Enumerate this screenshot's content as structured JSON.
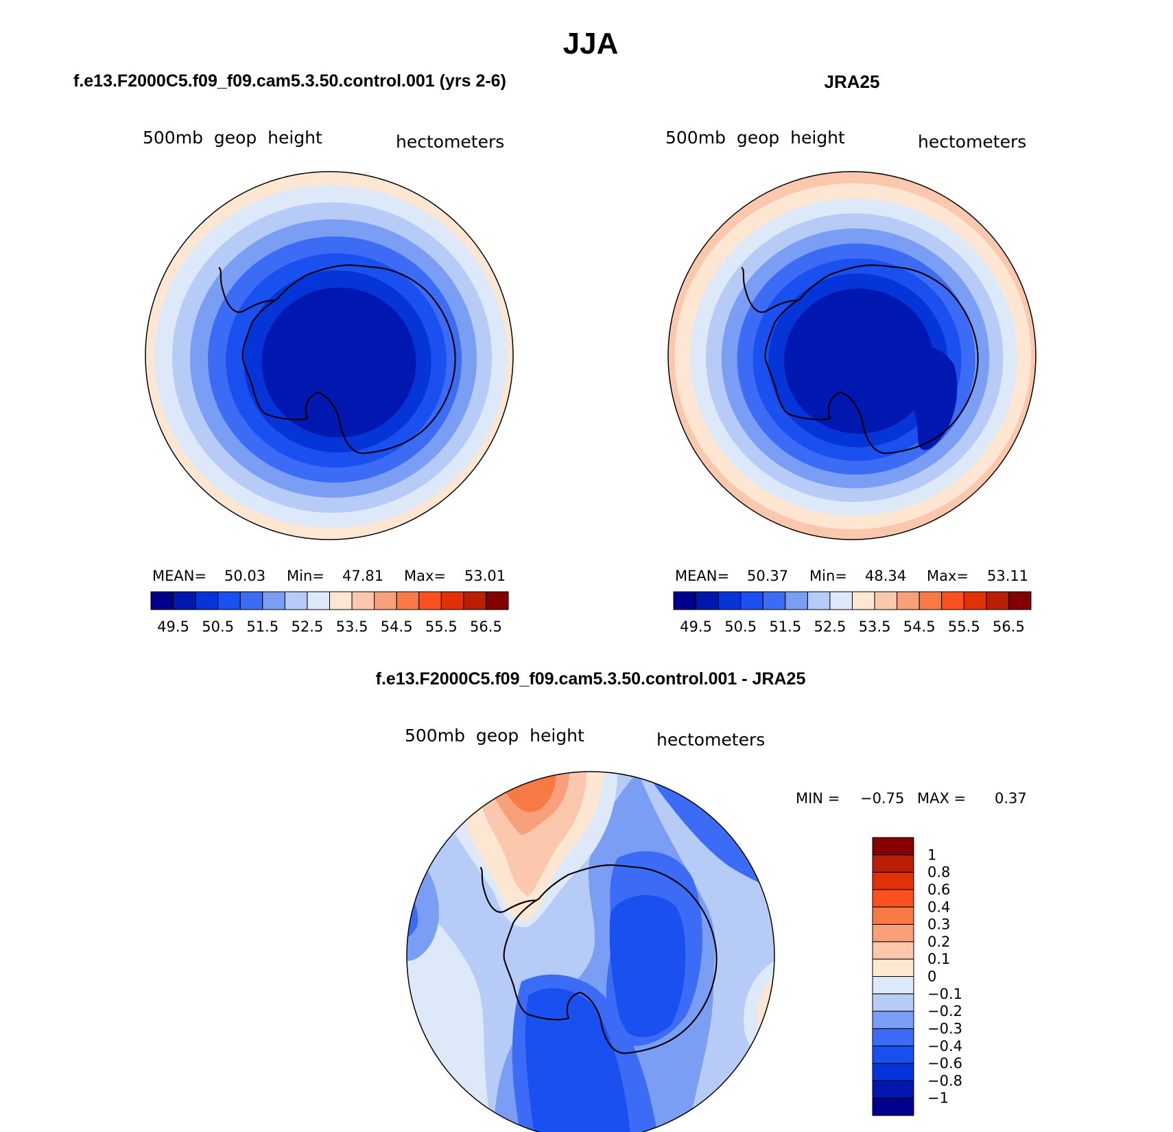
{
  "page": {
    "title": "JJA"
  },
  "panels": {
    "model": {
      "case_title": "f.e13.F2000C5.f09_f09.cam5.3.50.control.001 (yrs 2-6)",
      "variable": "500mb  geop  height",
      "units": "hectometers",
      "stats": {
        "mean_label": "MEAN=",
        "mean": "50.03",
        "min_label": "Min=",
        "min": "47.81",
        "max_label": "Max=",
        "max": "53.01"
      }
    },
    "obs": {
      "case_title": "JRA25",
      "variable": "500mb  geop  height",
      "units": "hectometers",
      "stats": {
        "mean_label": "MEAN=",
        "mean": "50.37",
        "min_label": "Min=",
        "min": "48.34",
        "max_label": "Max=",
        "max": "53.11"
      }
    },
    "diff": {
      "case_title": "f.e13.F2000C5.f09_f09.cam5.3.50.control.001 - JRA25",
      "variable": "500mb  geop  height",
      "units": "hectometers",
      "stats": {
        "min_label": "MIN =",
        "min": "−0.75",
        "max_label": "MAX =",
        "max": "0.37"
      }
    }
  },
  "chart_data": [
    {
      "type": "heatmap",
      "projection": "south polar stereographic",
      "title": "f.e13.F2000C5.f09_f09.cam5.3.50.control.001 (yrs 2-6)",
      "variable": "500mb geop height",
      "units": "hectometers",
      "mean": 50.03,
      "min": 47.81,
      "max": 53.01,
      "colorbar_levels": [
        49.5,
        50,
        50.5,
        51,
        51.5,
        52,
        52.5,
        53,
        53.5,
        54,
        54.5,
        55,
        55.5,
        56,
        56.5
      ],
      "colorbar_tick_labels": [
        "49.5",
        "50.5",
        "51.5",
        "52.5",
        "53.5",
        "54.5",
        "55.5",
        "56.5"
      ],
      "colorbar_colors": [
        "#00008f",
        "#0017b0",
        "#0535d8",
        "#1a4ff0",
        "#3c6cf5",
        "#7b9ef5",
        "#b7cbf7",
        "#dde9f8",
        "#fde7d3",
        "#fbc8ad",
        "#f7a07a",
        "#f77a45",
        "#fc501e",
        "#e03206",
        "#bb1e04",
        "#850000"
      ],
      "ring_levels_outer_to_inner": [
        52.5,
        52,
        51.5,
        51,
        50.5,
        50,
        49.5
      ]
    },
    {
      "type": "heatmap",
      "projection": "south polar stereographic",
      "title": "JRA25",
      "variable": "500mb geop height",
      "units": "hectometers",
      "mean": 50.37,
      "min": 48.34,
      "max": 53.11,
      "colorbar_levels": [
        49.5,
        50,
        50.5,
        51,
        51.5,
        52,
        52.5,
        53,
        53.5,
        54,
        54.5,
        55,
        55.5,
        56,
        56.5
      ],
      "colorbar_tick_labels": [
        "49.5",
        "50.5",
        "51.5",
        "52.5",
        "53.5",
        "54.5",
        "55.5",
        "56.5"
      ],
      "colorbar_colors": [
        "#00008f",
        "#0017b0",
        "#0535d8",
        "#1a4ff0",
        "#3c6cf5",
        "#7b9ef5",
        "#b7cbf7",
        "#dde9f8",
        "#fde7d3",
        "#fbc8ad",
        "#f7a07a",
        "#f77a45",
        "#fc501e",
        "#e03206",
        "#bb1e04",
        "#850000"
      ],
      "ring_levels_outer_to_inner": [
        53,
        52.5,
        52,
        51.5,
        51,
        50.5,
        50,
        49.5
      ]
    },
    {
      "type": "heatmap",
      "projection": "south polar stereographic",
      "title": "f.e13.F2000C5.f09_f09.cam5.3.50.control.001 - JRA25",
      "variable": "500mb geop height",
      "units": "hectometers",
      "min": -0.75,
      "max": 0.37,
      "colorbar_levels": [
        "1",
        "0.8",
        "0.6",
        "0.4",
        "0.3",
        "0.2",
        "0.1",
        "0",
        "−0.1",
        "−0.2",
        "−0.3",
        "−0.4",
        "−0.6",
        "−0.8",
        "−1"
      ],
      "colorbar_colors_top_to_bottom": [
        "#850000",
        "#bb1e04",
        "#e03206",
        "#fc501e",
        "#f77a45",
        "#f7a07a",
        "#fbc8ad",
        "#fde7d3",
        "#dde9f8",
        "#b7cbf7",
        "#7b9ef5",
        "#3c6cf5",
        "#1a4ff0",
        "#0535d8",
        "#0017b0",
        "#00008f"
      ]
    }
  ]
}
